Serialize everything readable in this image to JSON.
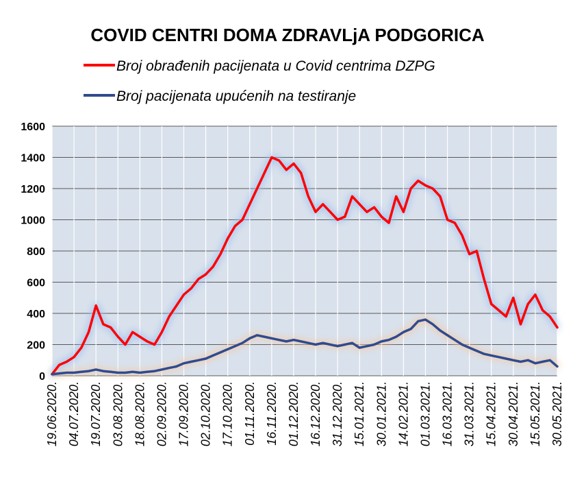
{
  "chart_data": {
    "type": "line",
    "title": "COVID  CENTRI  DOMA ZDRAVLjA  PODGORICA",
    "ylim": [
      0,
      1600
    ],
    "yticks": [
      "0",
      "200",
      "400",
      "600",
      "800",
      "1000",
      "1200",
      "1400",
      "1600"
    ],
    "x_tick_labels": [
      "19.06.2020.",
      "04.07.2020.",
      "19.07.2020.",
      "03.08.2020.",
      "18.08.2020.",
      "02.09.2020.",
      "17.09.2020.",
      "02.10.2020.",
      "17.10.2020.",
      "01.11.2020.",
      "16.11.2020.",
      "01.12.2020.",
      "16.12.2020.",
      "31.12.2020.",
      "15.01.2021.",
      "30.01.2021.",
      "14.02.2021.",
      "01.03.2021.",
      "16.03.2021.",
      "31.03.2021.",
      "15.04.2021.",
      "30.04.2021.",
      "15.05.2021.",
      "30.05.2021."
    ],
    "grid": true,
    "legend_position": "top",
    "series": [
      {
        "name": "Broj obrađenih pacijenata u Covid centrima DZPG",
        "color": "#ff0000",
        "points": [
          [
            "19.06.2020.",
            10
          ],
          [
            "24.06.2020.",
            70
          ],
          [
            "29.06.2020.",
            90
          ],
          [
            "04.07.2020.",
            120
          ],
          [
            "09.07.2020.",
            180
          ],
          [
            "14.07.2020.",
            280
          ],
          [
            "19.07.2020.",
            450
          ],
          [
            "24.07.2020.",
            330
          ],
          [
            "29.07.2020.",
            310
          ],
          [
            "03.08.2020.",
            250
          ],
          [
            "08.08.2020.",
            200
          ],
          [
            "13.08.2020.",
            280
          ],
          [
            "18.08.2020.",
            250
          ],
          [
            "23.08.2020.",
            220
          ],
          [
            "28.08.2020.",
            200
          ],
          [
            "02.09.2020.",
            280
          ],
          [
            "07.09.2020.",
            380
          ],
          [
            "12.09.2020.",
            450
          ],
          [
            "17.09.2020.",
            520
          ],
          [
            "22.09.2020.",
            560
          ],
          [
            "27.09.2020.",
            620
          ],
          [
            "02.10.2020.",
            650
          ],
          [
            "07.10.2020.",
            700
          ],
          [
            "12.10.2020.",
            780
          ],
          [
            "17.10.2020.",
            880
          ],
          [
            "22.10.2020.",
            960
          ],
          [
            "27.10.2020.",
            1000
          ],
          [
            "01.11.2020.",
            1100
          ],
          [
            "06.11.2020.",
            1200
          ],
          [
            "11.11.2020.",
            1300
          ],
          [
            "16.11.2020.",
            1400
          ],
          [
            "21.11.2020.",
            1380
          ],
          [
            "26.11.2020.",
            1320
          ],
          [
            "01.12.2020.",
            1360
          ],
          [
            "06.12.2020.",
            1300
          ],
          [
            "11.12.2020.",
            1150
          ],
          [
            "16.12.2020.",
            1050
          ],
          [
            "21.12.2020.",
            1100
          ],
          [
            "26.12.2020.",
            1050
          ],
          [
            "31.12.2020.",
            1000
          ],
          [
            "05.01.2021.",
            1020
          ],
          [
            "10.01.2021.",
            1150
          ],
          [
            "15.01.2021.",
            1100
          ],
          [
            "20.01.2021.",
            1050
          ],
          [
            "25.01.2021.",
            1080
          ],
          [
            "30.01.2021.",
            1020
          ],
          [
            "04.02.2021.",
            980
          ],
          [
            "09.02.2021.",
            1150
          ],
          [
            "14.02.2021.",
            1050
          ],
          [
            "19.02.2021.",
            1200
          ],
          [
            "24.02.2021.",
            1250
          ],
          [
            "01.03.2021.",
            1220
          ],
          [
            "06.03.2021.",
            1200
          ],
          [
            "11.03.2021.",
            1150
          ],
          [
            "16.03.2021.",
            1000
          ],
          [
            "21.03.2021.",
            980
          ],
          [
            "26.03.2021.",
            900
          ],
          [
            "31.03.2021.",
            780
          ],
          [
            "05.04.2021.",
            800
          ],
          [
            "10.04.2021.",
            620
          ],
          [
            "15.04.2021.",
            460
          ],
          [
            "20.04.2021.",
            420
          ],
          [
            "25.04.2021.",
            380
          ],
          [
            "30.04.2021.",
            500
          ],
          [
            "05.05.2021.",
            330
          ],
          [
            "10.05.2021.",
            460
          ],
          [
            "15.05.2021.",
            520
          ],
          [
            "20.05.2021.",
            420
          ],
          [
            "25.05.2021.",
            380
          ],
          [
            "30.05.2021.",
            310
          ]
        ]
      },
      {
        "name": "Broj pacijenata upućenih na testiranje",
        "color": "#2f4b8f",
        "points": [
          [
            "19.06.2020.",
            10
          ],
          [
            "24.06.2020.",
            15
          ],
          [
            "29.06.2020.",
            20
          ],
          [
            "04.07.2020.",
            20
          ],
          [
            "09.07.2020.",
            25
          ],
          [
            "14.07.2020.",
            30
          ],
          [
            "19.07.2020.",
            40
          ],
          [
            "24.07.2020.",
            30
          ],
          [
            "29.07.2020.",
            25
          ],
          [
            "03.08.2020.",
            20
          ],
          [
            "08.08.2020.",
            20
          ],
          [
            "13.08.2020.",
            25
          ],
          [
            "18.08.2020.",
            20
          ],
          [
            "23.08.2020.",
            25
          ],
          [
            "28.08.2020.",
            30
          ],
          [
            "02.09.2020.",
            40
          ],
          [
            "07.09.2020.",
            50
          ],
          [
            "12.09.2020.",
            60
          ],
          [
            "17.09.2020.",
            80
          ],
          [
            "22.09.2020.",
            90
          ],
          [
            "27.09.2020.",
            100
          ],
          [
            "02.10.2020.",
            110
          ],
          [
            "07.10.2020.",
            130
          ],
          [
            "12.10.2020.",
            150
          ],
          [
            "17.10.2020.",
            170
          ],
          [
            "22.10.2020.",
            190
          ],
          [
            "27.10.2020.",
            210
          ],
          [
            "01.11.2020.",
            240
          ],
          [
            "06.11.2020.",
            260
          ],
          [
            "11.11.2020.",
            250
          ],
          [
            "16.11.2020.",
            240
          ],
          [
            "21.11.2020.",
            230
          ],
          [
            "26.11.2020.",
            220
          ],
          [
            "01.12.2020.",
            230
          ],
          [
            "06.12.2020.",
            220
          ],
          [
            "11.12.2020.",
            210
          ],
          [
            "16.12.2020.",
            200
          ],
          [
            "21.12.2020.",
            210
          ],
          [
            "26.12.2020.",
            200
          ],
          [
            "31.12.2020.",
            190
          ],
          [
            "05.01.2021.",
            200
          ],
          [
            "10.01.2021.",
            210
          ],
          [
            "15.01.2021.",
            180
          ],
          [
            "20.01.2021.",
            190
          ],
          [
            "25.01.2021.",
            200
          ],
          [
            "30.01.2021.",
            220
          ],
          [
            "04.02.2021.",
            230
          ],
          [
            "09.02.2021.",
            250
          ],
          [
            "14.02.2021.",
            280
          ],
          [
            "19.02.2021.",
            300
          ],
          [
            "24.02.2021.",
            350
          ],
          [
            "01.03.2021.",
            360
          ],
          [
            "06.03.2021.",
            330
          ],
          [
            "11.03.2021.",
            290
          ],
          [
            "16.03.2021.",
            260
          ],
          [
            "21.03.2021.",
            230
          ],
          [
            "26.03.2021.",
            200
          ],
          [
            "31.03.2021.",
            180
          ],
          [
            "05.04.2021.",
            160
          ],
          [
            "10.04.2021.",
            140
          ],
          [
            "15.04.2021.",
            130
          ],
          [
            "20.04.2021.",
            120
          ],
          [
            "25.04.2021.",
            110
          ],
          [
            "30.04.2021.",
            100
          ],
          [
            "05.05.2021.",
            90
          ],
          [
            "10.05.2021.",
            100
          ],
          [
            "15.05.2021.",
            80
          ],
          [
            "20.05.2021.",
            90
          ],
          [
            "25.05.2021.",
            100
          ],
          [
            "30.05.2021.",
            60
          ]
        ]
      }
    ]
  },
  "colors": {
    "plot_background": "#d9e1ec",
    "gridline": "#595959",
    "axis_text": "#000000",
    "red_glow": "#9fc1f0",
    "blue_glow": "#f3c8a4"
  }
}
